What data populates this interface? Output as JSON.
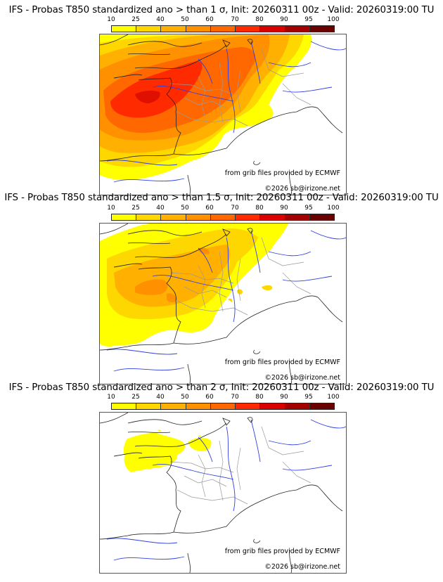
{
  "colorbar": {
    "ticks": [
      "10",
      "25",
      "40",
      "50",
      "60",
      "70",
      "80",
      "90",
      "95",
      "100"
    ],
    "colors": [
      "#ffff00",
      "#ffd700",
      "#ffb000",
      "#ff9000",
      "#ff6800",
      "#ff2a00",
      "#d90000",
      "#a50000",
      "#6b0000"
    ]
  },
  "panels": [
    {
      "title": "IFS - Probas T850  standardized ano > than 1 σ, Init: 20260311 00z - Valid: 20260319:00 TU",
      "threshold_sigma": 1,
      "source": "from grib files provided by ECMWF",
      "copyright": "©2026 sb@irizone.net"
    },
    {
      "title": "IFS - Probas T850  standardized ano > than 1.5 σ, Init: 20260311 00z - Valid: 20260319:00 TU",
      "threshold_sigma": 1.5,
      "source": "from grib files provided by ECMWF",
      "copyright": "©2026 sb@irizone.net"
    },
    {
      "title": "IFS - Probas T850  standardized ano > than 2 σ, Init: 20260311 00z - Valid: 20260319:00 TU",
      "threshold_sigma": 2,
      "source": "from grib files provided by ECMWF",
      "copyright": "©2026 sb@irizone.net"
    }
  ]
}
